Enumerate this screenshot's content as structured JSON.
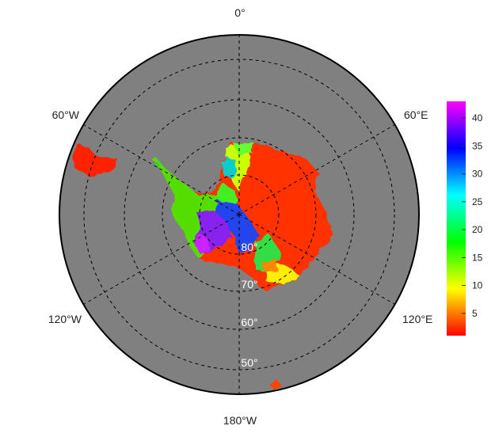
{
  "map": {
    "projection": "south-polar-stereographic",
    "ocean_color": "#808080",
    "outline_color": "#000000",
    "graticule_style": "dashed",
    "longitude_labels": [
      {
        "key": "0",
        "text": "0°"
      },
      {
        "key": "60E",
        "text": "60°E"
      },
      {
        "key": "120E",
        "text": "120°E"
      },
      {
        "key": "180W",
        "text": "180°W"
      },
      {
        "key": "120W",
        "text": "120°W"
      },
      {
        "key": "60W",
        "text": "60°W"
      }
    ],
    "latitude_labels": [
      {
        "key": "80",
        "text": "80°"
      },
      {
        "key": "70",
        "text": "70°"
      },
      {
        "key": "60",
        "text": "60°"
      },
      {
        "key": "50",
        "text": "50°"
      }
    ]
  },
  "colorbar": {
    "colormap": "rainbow (red → yellow → green → cyan → blue → purple → magenta)",
    "min": 1,
    "max": 43,
    "ticks": [
      5,
      10,
      15,
      20,
      25,
      30,
      35,
      40
    ],
    "tick_labels": [
      "5",
      "10",
      "15",
      "20",
      "25",
      "30",
      "35",
      "40"
    ],
    "colors": [
      "#ff0000",
      "#ff8000",
      "#ffff00",
      "#80ff00",
      "#00ff00",
      "#00ff80",
      "#00ffff",
      "#0080ff",
      "#0000ff",
      "#8000ff",
      "#ff00ff"
    ]
  }
}
